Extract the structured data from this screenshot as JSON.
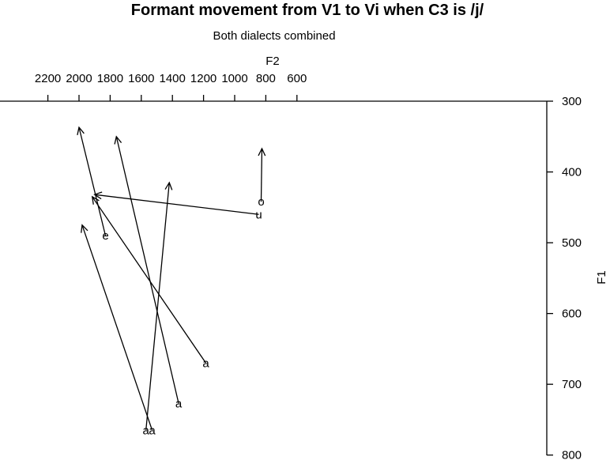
{
  "chart_data": {
    "type": "arrow-plot",
    "title": "Formant movement from V1 to Vi when C3 is /j/",
    "subtitle": "Both dialects combined",
    "xlabel": "F2",
    "ylabel": "F1",
    "x_axis": {
      "position": "top",
      "reversed": true,
      "ticks": [
        2200,
        2000,
        1800,
        1600,
        1400,
        1200,
        1000,
        800,
        600
      ]
    },
    "y_axis": {
      "position": "right",
      "reversed": true,
      "ticks": [
        300,
        400,
        500,
        600,
        700,
        800
      ]
    },
    "grid": false,
    "legend": "none",
    "arrows": [
      {
        "label": "a",
        "from": {
          "F2": 1185,
          "F1": 670
        },
        "to": {
          "F2": 1915,
          "F1": 435
        }
      },
      {
        "label": "a",
        "from": {
          "F2": 1360,
          "F1": 727
        },
        "to": {
          "F2": 1760,
          "F1": 350
        }
      },
      {
        "label": "a",
        "from": {
          "F2": 1530,
          "F1": 765
        },
        "to": {
          "F2": 1980,
          "F1": 475
        }
      },
      {
        "label": "a",
        "from": {
          "F2": 1570,
          "F1": 765
        },
        "to": {
          "F2": 1420,
          "F1": 415
        }
      },
      {
        "label": "e",
        "from": {
          "F2": 1830,
          "F1": 490
        },
        "to": {
          "F2": 2000,
          "F1": 337
        }
      },
      {
        "label": "u",
        "from": {
          "F2": 845,
          "F1": 460
        },
        "to": {
          "F2": 1900,
          "F1": 432
        }
      },
      {
        "label": "o",
        "from": {
          "F2": 830,
          "F1": 442
        },
        "to": {
          "F2": 825,
          "F1": 367
        }
      }
    ]
  }
}
